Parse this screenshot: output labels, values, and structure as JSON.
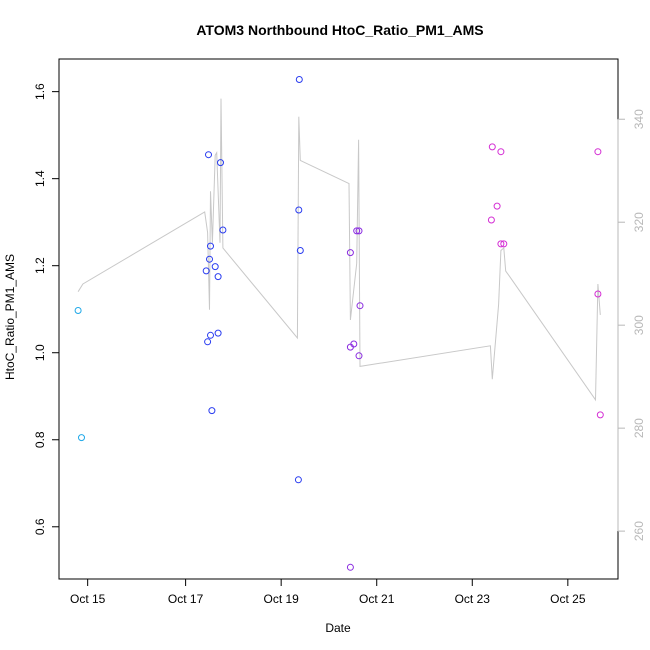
{
  "chart_data": {
    "type": "scatter",
    "title": "ATOM3 Northbound HtoC_Ratio_PM1_AMS",
    "xlabel": "Date",
    "ylabel": "HtoC_Ratio_PM1_AMS",
    "x_ticks": [
      {
        "value": 14.95,
        "label": "Oct 15"
      },
      {
        "value": 17.0,
        "label": "Oct 17"
      },
      {
        "value": 19.0,
        "label": "Oct 19"
      },
      {
        "value": 21.0,
        "label": "Oct 21"
      },
      {
        "value": 23.0,
        "label": "Oct 23"
      },
      {
        "value": 25.0,
        "label": "Oct 25"
      }
    ],
    "xlim": [
      14.35,
      26.05
    ],
    "ylim": [
      0.48,
      1.675
    ],
    "y_ticks": [
      0.6,
      0.8,
      1.0,
      1.2,
      1.4,
      1.6
    ],
    "y_tick_labels": [
      "0.6",
      "0.8",
      "1.0",
      "1.2",
      "1.4",
      "1.6"
    ],
    "y2lim": [
      250.7,
      351.7
    ],
    "y2_ticks": [
      260,
      280,
      300,
      320,
      340
    ],
    "y2_tick_labels": [
      "260",
      "280",
      "300",
      "320",
      "340"
    ],
    "grid": false,
    "legend": "none",
    "colors": {
      "line": "#c8c8c8",
      "right_axis": "#b8b8b8",
      "point_cyan": "#1fa8e8",
      "point_blue": "#2a3df0",
      "point_purple": "#8a2ce0",
      "point_magenta": "#d42ed4"
    },
    "points": [
      {
        "x": 14.75,
        "y": 1.097,
        "color": "#1fa8e8"
      },
      {
        "x": 14.82,
        "y": 0.805,
        "color": "#1fa8e8"
      },
      {
        "x": 17.48,
        "y": 1.455,
        "color": "#2a3df0"
      },
      {
        "x": 17.43,
        "y": 1.188,
        "color": "#2a3df0"
      },
      {
        "x": 17.5,
        "y": 1.215,
        "color": "#2a3df0"
      },
      {
        "x": 17.52,
        "y": 1.245,
        "color": "#2a3df0"
      },
      {
        "x": 17.46,
        "y": 1.025,
        "color": "#2a3df0"
      },
      {
        "x": 17.52,
        "y": 1.04,
        "color": "#2a3df0"
      },
      {
        "x": 17.55,
        "y": 0.867,
        "color": "#2a3df0"
      },
      {
        "x": 17.62,
        "y": 1.198,
        "color": "#2a3df0"
      },
      {
        "x": 17.68,
        "y": 1.175,
        "color": "#2a3df0"
      },
      {
        "x": 17.68,
        "y": 1.045,
        "color": "#2a3df0"
      },
      {
        "x": 17.73,
        "y": 1.437,
        "color": "#2a3df0"
      },
      {
        "x": 17.78,
        "y": 1.282,
        "color": "#2a3df0"
      },
      {
        "x": 19.38,
        "y": 1.628,
        "color": "#2a3df0"
      },
      {
        "x": 19.37,
        "y": 1.328,
        "color": "#2a3df0"
      },
      {
        "x": 19.4,
        "y": 1.235,
        "color": "#2a3df0"
      },
      {
        "x": 19.36,
        "y": 0.708,
        "color": "#2a3df0"
      },
      {
        "x": 20.45,
        "y": 1.23,
        "color": "#8a2ce0"
      },
      {
        "x": 20.45,
        "y": 1.013,
        "color": "#8a2ce0"
      },
      {
        "x": 20.52,
        "y": 1.02,
        "color": "#8a2ce0"
      },
      {
        "x": 20.58,
        "y": 1.28,
        "color": "#8a2ce0"
      },
      {
        "x": 20.63,
        "y": 1.28,
        "color": "#8a2ce0"
      },
      {
        "x": 20.65,
        "y": 1.108,
        "color": "#8a2ce0"
      },
      {
        "x": 20.63,
        "y": 0.993,
        "color": "#8a2ce0"
      },
      {
        "x": 20.45,
        "y": 0.507,
        "color": "#8a2ce0"
      },
      {
        "x": 23.42,
        "y": 1.473,
        "color": "#d42ed4"
      },
      {
        "x": 23.4,
        "y": 1.305,
        "color": "#d42ed4"
      },
      {
        "x": 23.52,
        "y": 1.337,
        "color": "#d42ed4"
      },
      {
        "x": 23.6,
        "y": 1.462,
        "color": "#d42ed4"
      },
      {
        "x": 23.6,
        "y": 1.25,
        "color": "#d42ed4"
      },
      {
        "x": 23.66,
        "y": 1.25,
        "color": "#d42ed4"
      },
      {
        "x": 25.63,
        "y": 1.462,
        "color": "#d42ed4"
      },
      {
        "x": 25.63,
        "y": 1.135,
        "color": "#d42ed4"
      },
      {
        "x": 25.68,
        "y": 0.857,
        "color": "#d42ed4"
      }
    ],
    "line_series": [
      {
        "x": 14.75,
        "y2": 306.5
      },
      {
        "x": 14.85,
        "y2": 308
      },
      {
        "x": 17.4,
        "y2": 322
      },
      {
        "x": 17.46,
        "y2": 318
      },
      {
        "x": 17.5,
        "y2": 303
      },
      {
        "x": 17.52,
        "y2": 326
      },
      {
        "x": 17.56,
        "y2": 316
      },
      {
        "x": 17.62,
        "y2": 333
      },
      {
        "x": 17.65,
        "y2": 333.5
      },
      {
        "x": 17.72,
        "y2": 316
      },
      {
        "x": 17.74,
        "y2": 344
      },
      {
        "x": 17.78,
        "y2": 315
      },
      {
        "x": 19.34,
        "y2": 297.5
      },
      {
        "x": 19.37,
        "y2": 340.5
      },
      {
        "x": 19.4,
        "y2": 332
      },
      {
        "x": 20.42,
        "y2": 327.5
      },
      {
        "x": 20.45,
        "y2": 301
      },
      {
        "x": 20.58,
        "y2": 312
      },
      {
        "x": 20.62,
        "y2": 336
      },
      {
        "x": 20.65,
        "y2": 292
      },
      {
        "x": 23.38,
        "y2": 296
      },
      {
        "x": 23.42,
        "y2": 289.5
      },
      {
        "x": 23.55,
        "y2": 304
      },
      {
        "x": 23.6,
        "y2": 314.5
      },
      {
        "x": 23.66,
        "y2": 315
      },
      {
        "x": 23.7,
        "y2": 310.5
      },
      {
        "x": 23.78,
        "y2": 309.5
      },
      {
        "x": 25.58,
        "y2": 285.5
      },
      {
        "x": 25.63,
        "y2": 308
      },
      {
        "x": 25.68,
        "y2": 302
      }
    ]
  }
}
